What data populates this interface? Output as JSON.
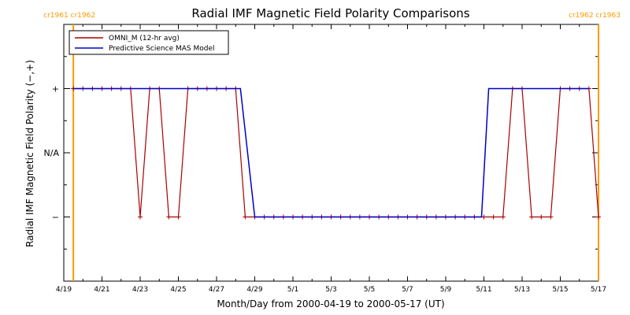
{
  "chart_data": {
    "type": "line",
    "title": "Radial IMF Magnetic Field Polarity Comparisons",
    "xlabel": "Month/Day from 2000-04-19 to 2000-05-17 (UT)",
    "ylabel": "Radial IMF Magnetic Field Polarity (−,+)",
    "xlim": [
      "2000-04-19",
      "2000-05-17"
    ],
    "ylim": [
      -2,
      2
    ],
    "x_tick_labels": [
      "4/19",
      "4/21",
      "4/23",
      "4/25",
      "4/27",
      "4/29",
      "5/1",
      "5/3",
      "5/5",
      "5/7",
      "5/9",
      "5/11",
      "5/13",
      "5/15",
      "5/17"
    ],
    "x_ticks": [
      "2000-04-19",
      "2000-04-21",
      "2000-04-23",
      "2000-04-25",
      "2000-04-27",
      "2000-04-29",
      "2000-05-01",
      "2000-05-03",
      "2000-05-05",
      "2000-05-07",
      "2000-05-09",
      "2000-05-11",
      "2000-05-13",
      "2000-05-15",
      "2000-05-17"
    ],
    "y_ticks": [
      {
        "value": 1,
        "label": "+"
      },
      {
        "value": 0,
        "label": "N/A"
      },
      {
        "value": -1,
        "label": "−"
      }
    ],
    "legend": "top-left",
    "grid": false,
    "series": [
      {
        "name": "OMNI_M (12-hr avg)",
        "color": "#aa0000",
        "marker": "plus",
        "points": [
          [
            "2000-04-19 12:00",
            1
          ],
          [
            "2000-04-20 00:00",
            1
          ],
          [
            "2000-04-20 12:00",
            1
          ],
          [
            "2000-04-21 00:00",
            1
          ],
          [
            "2000-04-21 12:00",
            1
          ],
          [
            "2000-04-22 00:00",
            1
          ],
          [
            "2000-04-22 12:00",
            1
          ],
          [
            "2000-04-23 00:00",
            -1
          ],
          [
            "2000-04-23 12:00",
            1
          ],
          [
            "2000-04-24 00:00",
            1
          ],
          [
            "2000-04-24 12:00",
            -1
          ],
          [
            "2000-04-25 00:00",
            -1
          ],
          [
            "2000-04-25 12:00",
            1
          ],
          [
            "2000-04-26 00:00",
            1
          ],
          [
            "2000-04-26 12:00",
            1
          ],
          [
            "2000-04-27 00:00",
            1
          ],
          [
            "2000-04-27 12:00",
            1
          ],
          [
            "2000-04-28 00:00",
            1
          ],
          [
            "2000-04-28 12:00",
            -1
          ],
          [
            "2000-04-29 00:00",
            -1
          ],
          [
            "2000-04-29 12:00",
            -1
          ],
          [
            "2000-04-30 00:00",
            -1
          ],
          [
            "2000-04-30 12:00",
            -1
          ],
          [
            "2000-05-01 00:00",
            -1
          ],
          [
            "2000-05-01 12:00",
            -1
          ],
          [
            "2000-05-02 00:00",
            -1
          ],
          [
            "2000-05-02 12:00",
            -1
          ],
          [
            "2000-05-03 00:00",
            -1
          ],
          [
            "2000-05-03 12:00",
            -1
          ],
          [
            "2000-05-04 00:00",
            -1
          ],
          [
            "2000-05-04 12:00",
            -1
          ],
          [
            "2000-05-05 00:00",
            -1
          ],
          [
            "2000-05-05 12:00",
            -1
          ],
          [
            "2000-05-06 00:00",
            -1
          ],
          [
            "2000-05-06 12:00",
            -1
          ],
          [
            "2000-05-07 00:00",
            -1
          ],
          [
            "2000-05-07 12:00",
            -1
          ],
          [
            "2000-05-08 00:00",
            -1
          ],
          [
            "2000-05-08 12:00",
            -1
          ],
          [
            "2000-05-09 00:00",
            -1
          ],
          [
            "2000-05-09 12:00",
            -1
          ],
          [
            "2000-05-10 00:00",
            -1
          ],
          [
            "2000-05-10 12:00",
            -1
          ],
          [
            "2000-05-11 00:00",
            -1
          ],
          [
            "2000-05-11 12:00",
            -1
          ],
          [
            "2000-05-12 00:00",
            -1
          ],
          [
            "2000-05-12 12:00",
            1
          ],
          [
            "2000-05-13 00:00",
            1
          ],
          [
            "2000-05-13 12:00",
            -1
          ],
          [
            "2000-05-14 00:00",
            -1
          ],
          [
            "2000-05-14 12:00",
            -1
          ],
          [
            "2000-05-15 00:00",
            1
          ],
          [
            "2000-05-15 12:00",
            1
          ],
          [
            "2000-05-16 00:00",
            1
          ],
          [
            "2000-05-16 12:00",
            1
          ],
          [
            "2000-05-17 00:00",
            -1
          ]
        ]
      },
      {
        "name": "Predictive Science MAS Model",
        "color": "#0000cc",
        "marker": "none",
        "points": [
          [
            "2000-04-19 12:00",
            1
          ],
          [
            "2000-04-28 06:00",
            1
          ],
          [
            "2000-04-29 00:00",
            -1
          ],
          [
            "2000-05-10 21:00",
            -1
          ],
          [
            "2000-05-11 06:00",
            1
          ],
          [
            "2000-05-16 12:00",
            1
          ]
        ]
      }
    ],
    "annotations": [
      {
        "x": "2000-04-19 12:00",
        "type": "vline",
        "color": "#ff9900",
        "labels": [
          "cr1961",
          "cr1962"
        ]
      },
      {
        "x": "2000-05-17 00:00",
        "type": "vline",
        "color": "#ff9900",
        "labels": [
          "cr1962",
          "cr1963"
        ]
      }
    ]
  }
}
